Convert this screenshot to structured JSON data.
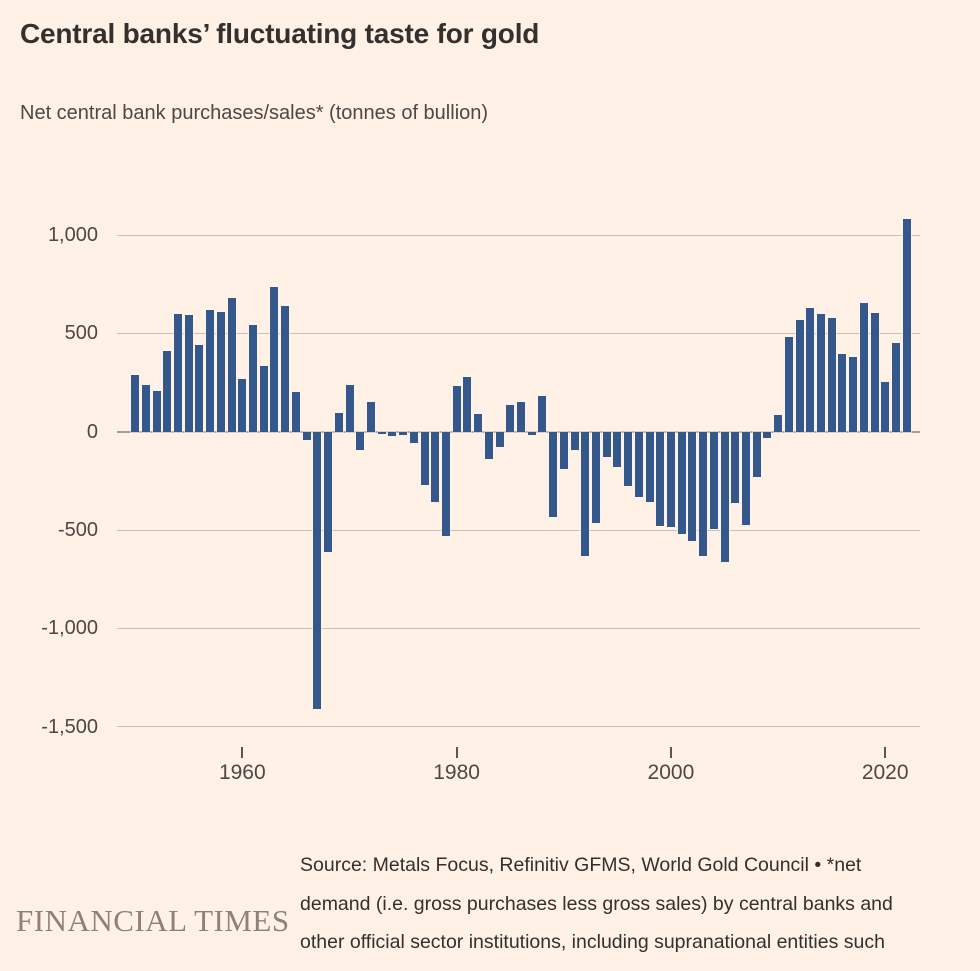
{
  "header": {
    "title": "Central banks’ fluctuating taste for gold",
    "subtitle": "Net central bank purchases/sales* (tonnes of bullion)"
  },
  "chart_data": {
    "type": "bar",
    "title": "Central banks’ fluctuating taste for gold",
    "subtitle": "Net central bank purchases/sales* (tonnes of bullion)",
    "unit": "tonnes of bullion",
    "years": [
      1950,
      1951,
      1952,
      1953,
      1954,
      1955,
      1956,
      1957,
      1958,
      1959,
      1960,
      1961,
      1962,
      1963,
      1964,
      1965,
      1966,
      1967,
      1968,
      1969,
      1970,
      1971,
      1972,
      1973,
      1974,
      1975,
      1976,
      1977,
      1978,
      1979,
      1980,
      1981,
      1982,
      1983,
      1984,
      1985,
      1986,
      1987,
      1988,
      1989,
      1990,
      1991,
      1992,
      1993,
      1994,
      1995,
      1996,
      1997,
      1998,
      1999,
      2000,
      2001,
      2002,
      2003,
      2004,
      2005,
      2006,
      2007,
      2008,
      2009,
      2010,
      2011,
      2012,
      2013,
      2014,
      2015,
      2016,
      2017,
      2018,
      2019,
      2020,
      2021,
      2022
    ],
    "values": [
      290,
      240,
      205,
      410,
      600,
      595,
      440,
      620,
      610,
      680,
      270,
      545,
      335,
      735,
      640,
      200,
      -40,
      -1410,
      -610,
      95,
      240,
      -95,
      150,
      -10,
      -20,
      -15,
      -60,
      -270,
      -360,
      -530,
      235,
      280,
      90,
      -140,
      -80,
      135,
      150,
      -15,
      180,
      -435,
      -190,
      -95,
      -630,
      -465,
      -130,
      -180,
      -275,
      -330,
      -360,
      -480,
      -485,
      -520,
      -555,
      -630,
      -495,
      -665,
      -365,
      -475,
      -230,
      -30,
      85,
      480,
      570,
      630,
      600,
      580,
      395,
      380,
      655,
      605,
      255,
      450,
      1080
    ],
    "yticks": [
      1000,
      500,
      0,
      -500,
      -1000,
      -1500
    ],
    "ytick_labels": [
      "1,000",
      "500",
      "0",
      "-500",
      "-1,000",
      "-1,500"
    ],
    "xticks": [
      1960,
      1980,
      2000,
      2020
    ],
    "xtick_labels": [
      "1960",
      "1980",
      "2000",
      "2020"
    ],
    "ylim": [
      -1500,
      1100
    ],
    "grid": true,
    "legend": false
  },
  "footer": {
    "logo": "FINANCIAL TIMES",
    "source_lines": [
      "Source: Metals Focus, Refinitiv GFMS, World Gold Council • *net",
      "demand (i.e. gross purchases less gross sales) by central banks and",
      "other official sector institutions, including supranational entities such"
    ]
  },
  "colors": {
    "background": "#FFF1E5",
    "bar": "#35588C",
    "gridline": "#CBC0B5",
    "zero_line": "#A59C91",
    "title_text": "#33302E",
    "body_text": "#4D4845",
    "logo_text": "#8B8278"
  }
}
